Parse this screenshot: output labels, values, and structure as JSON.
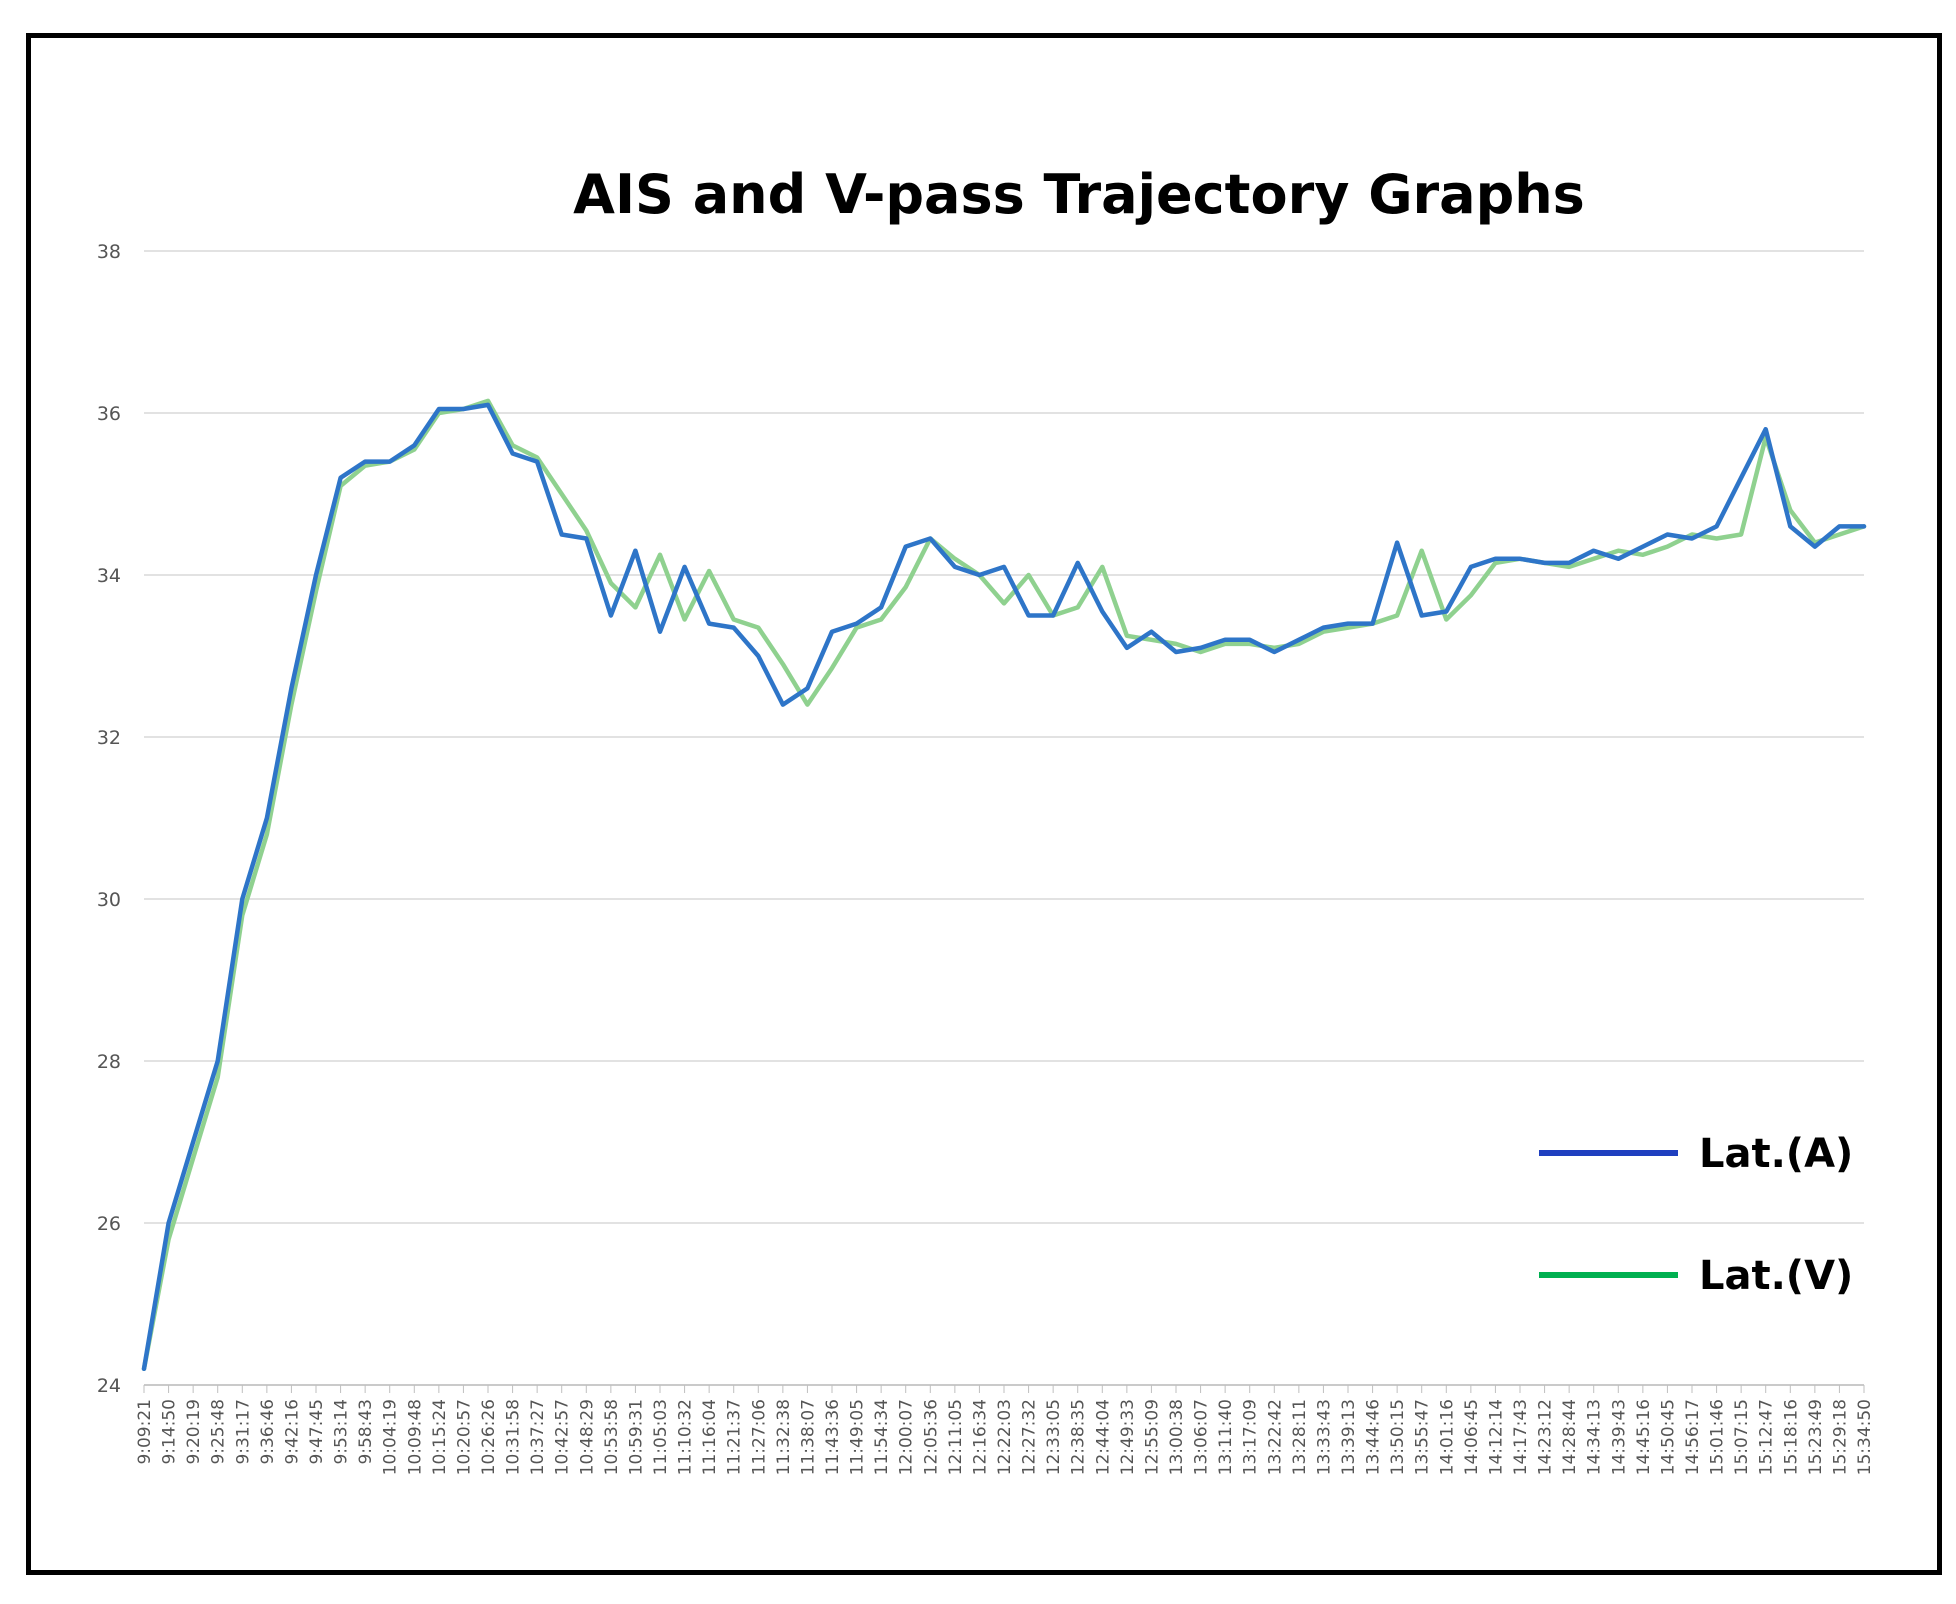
{
  "chart_data": {
    "type": "line",
    "title": "AIS and V-pass Trajectory Graphs",
    "xlabel": "",
    "ylabel": "",
    "ylim": [
      24,
      38
    ],
    "yticks": [
      "24",
      "26",
      "28",
      "30",
      "32",
      "34",
      "36",
      "38"
    ],
    "grid": true,
    "legend_position": "bottom-right",
    "x": [
      "9:09:21",
      "9:14:50",
      "9:20:19",
      "9:25:48",
      "9:31:17",
      "9:36:46",
      "9:42:16",
      "9:47:45",
      "9:53:14",
      "9:58:43",
      "10:04:19",
      "10:09:48",
      "10:15:24",
      "10:20:57",
      "10:26:26",
      "10:31:58",
      "10:37:27",
      "10:42:57",
      "10:48:29",
      "10:53:58",
      "10:59:31",
      "11:05:03",
      "11:10:32",
      "11:16:04",
      "11:21:37",
      "11:27:06",
      "11:32:38",
      "11:38:07",
      "11:43:36",
      "11:49:05",
      "11:54:34",
      "12:00:07",
      "12:05:36",
      "12:11:05",
      "12:16:34",
      "12:22:03",
      "12:27:32",
      "12:33:05",
      "12:38:35",
      "12:44:04",
      "12:49:33",
      "12:55:09",
      "13:00:38",
      "13:06:07",
      "13:11:40",
      "13:17:09",
      "13:22:42",
      "13:28:11",
      "13:33:43",
      "13:39:13",
      "13:44:46",
      "13:50:15",
      "13:55:47",
      "14:01:16",
      "14:06:45",
      "14:12:14",
      "14:17:43",
      "14:23:12",
      "14:28:44",
      "14:34:13",
      "14:39:43",
      "14:45:16",
      "14:50:45",
      "14:56:17",
      "15:01:46",
      "15:07:15",
      "15:12:47",
      "15:18:16",
      "15:23:49",
      "15:29:18",
      "15:34:50"
    ],
    "series": [
      {
        "name": "Lat.(A)",
        "color": "#1f5fbf",
        "values": [
          24.2,
          26.0,
          27.0,
          28.0,
          30.0,
          31.0,
          32.6,
          34.0,
          35.2,
          35.4,
          35.4,
          35.6,
          36.05,
          36.05,
          36.1,
          35.5,
          35.4,
          34.5,
          34.45,
          33.5,
          34.3,
          33.3,
          34.1,
          33.4,
          33.35,
          33.0,
          32.4,
          32.6,
          33.3,
          33.4,
          33.6,
          34.35,
          34.45,
          34.1,
          34.0,
          34.1,
          33.5,
          33.5,
          34.15,
          33.55,
          33.1,
          33.3,
          33.05,
          33.1,
          33.2,
          33.2,
          33.05,
          33.2,
          33.35,
          33.4,
          33.4,
          34.4,
          33.5,
          33.55,
          34.1,
          34.2,
          34.2,
          34.15,
          34.15,
          34.3,
          34.2,
          34.35,
          34.5,
          34.45,
          34.6,
          35.2,
          35.8,
          34.6,
          34.35,
          34.6,
          34.6
        ]
      },
      {
        "name": "Lat.(V)",
        "color": "#00b050",
        "values": [
          24.2,
          25.8,
          26.8,
          27.8,
          29.8,
          30.8,
          32.4,
          33.8,
          35.1,
          35.35,
          35.4,
          35.55,
          36.0,
          36.05,
          36.15,
          35.6,
          35.45,
          35.0,
          34.55,
          33.9,
          33.6,
          34.25,
          33.45,
          34.05,
          33.45,
          33.35,
          32.9,
          32.4,
          32.85,
          33.35,
          33.45,
          33.85,
          34.45,
          34.2,
          34.0,
          33.65,
          34.0,
          33.5,
          33.6,
          34.1,
          33.25,
          33.2,
          33.15,
          33.05,
          33.15,
          33.15,
          33.1,
          33.15,
          33.3,
          33.35,
          33.4,
          33.5,
          34.3,
          33.45,
          33.75,
          34.15,
          34.2,
          34.15,
          34.1,
          34.2,
          34.3,
          34.25,
          34.35,
          34.5,
          34.45,
          34.5,
          35.7,
          34.8,
          34.4,
          34.5,
          34.6
        ]
      }
    ]
  }
}
